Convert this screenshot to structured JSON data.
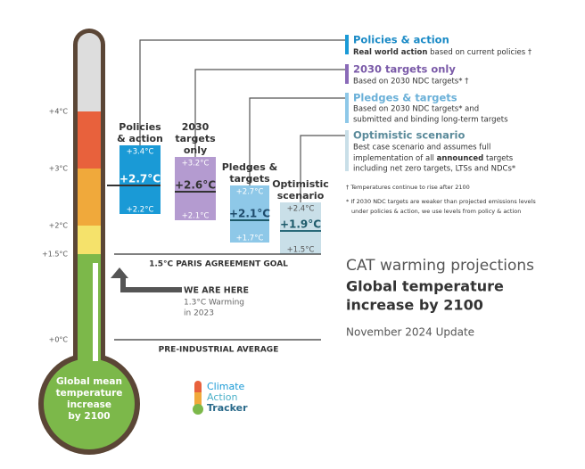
{
  "scale": {
    "ticks": [
      "+4°C",
      "+3°C",
      "+2°C",
      "+1.5°C",
      "+0°C"
    ]
  },
  "bulb": [
    "Global mean",
    "temperature",
    "increase",
    "by 2100"
  ],
  "scenarios": [
    {
      "title": [
        "Policies",
        "& action"
      ],
      "high": "+3.4°C",
      "mid": "+2.7°C",
      "low": "+2.2°C"
    },
    {
      "title": [
        "2030",
        "targets",
        "only"
      ],
      "high": "+3.2°C",
      "mid": "+2.6°C",
      "low": "+2.1°C"
    },
    {
      "title": [
        "Pledges &",
        "targets"
      ],
      "high": "+2.7°C",
      "mid": "+2.1°C",
      "low": "+1.7°C"
    },
    {
      "title": [
        "Optimistic",
        "scenario"
      ],
      "high": "+2.4°C",
      "mid": "+1.9°C",
      "low": "+1.5°C"
    }
  ],
  "legend": [
    {
      "title": "Policies & action",
      "bold": "Real world action",
      "rest": " based on current policies †"
    },
    {
      "title": "2030 targets only",
      "lines": [
        "Based on 2030 NDC targets* †"
      ]
    },
    {
      "title": "Pledges & targets",
      "lines": [
        "Based on 2030 NDC targets* and",
        "submitted and binding long-term targets"
      ]
    },
    {
      "title": "Optimistic scenario",
      "lines": [
        "Best case scenario and assumes full"
      ],
      "pre": "implementation of all ",
      "bold": "announced",
      "post": " targets",
      "after": "including net zero targets, LTSs and NDCs*"
    }
  ],
  "notes": [
    "† Temperatures continue to rise after 2100",
    "* If 2030 NDC targets are weaker than projected emissions levels",
    "under policies & action, we use levels from policy & action"
  ],
  "paris": "1.5°C PARIS AGREEMENT GOAL",
  "preindustrial": "PRE-INDUSTRIAL AVERAGE",
  "here": {
    "title": "WE ARE HERE",
    "lines": [
      "1.3°C Warming",
      "in 2023"
    ]
  },
  "heading": {
    "line1": "CAT warming projections",
    "line2": "Global temperature",
    "line3": "increase by 2100",
    "update": "November 2024 Update"
  },
  "logo": [
    "Climate",
    "Action",
    "Tracker"
  ]
}
